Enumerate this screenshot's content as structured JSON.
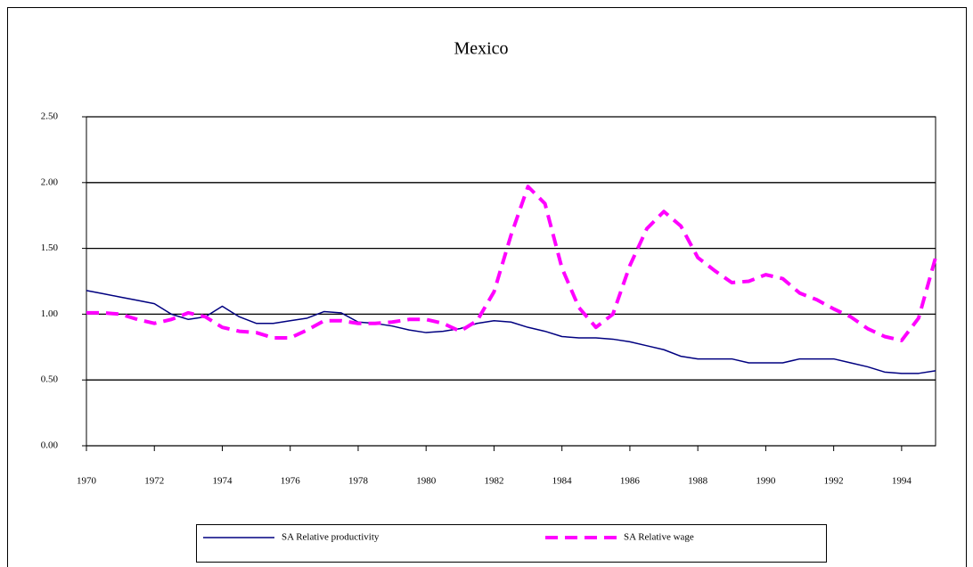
{
  "chart_data": {
    "type": "line",
    "title": "Mexico",
    "x": [
      1970,
      1970.5,
      1971,
      1971.5,
      1972,
      1972.5,
      1973,
      1973.5,
      1974,
      1974.5,
      1975,
      1975.5,
      1976,
      1976.5,
      1977,
      1977.5,
      1978,
      1978.5,
      1979,
      1979.5,
      1980,
      1980.5,
      1981,
      1981.5,
      1982,
      1982.5,
      1983,
      1983.5,
      1984,
      1984.5,
      1985,
      1985.5,
      1986,
      1986.5,
      1987,
      1987.5,
      1988,
      1988.5,
      1989,
      1989.5,
      1990,
      1990.5,
      1991,
      1991.5,
      1992,
      1992.5,
      1993,
      1993.5,
      1994,
      1994.5,
      1995
    ],
    "series": [
      {
        "name": "SA Relative productivity",
        "color": "#000080",
        "dashed": false,
        "values": [
          1.18,
          1.155,
          1.13,
          1.105,
          1.08,
          1.0,
          0.96,
          0.98,
          1.06,
          0.98,
          0.93,
          0.93,
          0.95,
          0.97,
          1.02,
          1.01,
          0.94,
          0.93,
          0.91,
          0.88,
          0.86,
          0.87,
          0.89,
          0.93,
          0.95,
          0.94,
          0.9,
          0.87,
          0.83,
          0.82,
          0.82,
          0.81,
          0.79,
          0.76,
          0.73,
          0.68,
          0.66,
          0.66,
          0.66,
          0.63,
          0.63,
          0.63,
          0.66,
          0.66,
          0.66,
          0.63,
          0.6,
          0.56,
          0.55,
          0.55,
          0.57
        ]
      },
      {
        "name": "SA Relative wage",
        "color": "#ff00ff",
        "dashed": true,
        "values": [
          1.01,
          1.01,
          1.0,
          0.96,
          0.93,
          0.96,
          1.01,
          0.98,
          0.9,
          0.87,
          0.86,
          0.82,
          0.82,
          0.88,
          0.95,
          0.95,
          0.93,
          0.93,
          0.94,
          0.96,
          0.96,
          0.93,
          0.87,
          0.95,
          1.17,
          1.6,
          1.97,
          1.84,
          1.35,
          1.05,
          0.9,
          1.0,
          1.37,
          1.65,
          1.78,
          1.67,
          1.43,
          1.33,
          1.24,
          1.25,
          1.3,
          1.27,
          1.16,
          1.11,
          1.04,
          0.98,
          0.89,
          0.83,
          0.8,
          0.97,
          1.43
        ]
      }
    ],
    "xlim": [
      1970,
      1995
    ],
    "xticks": [
      1970,
      1972,
      1974,
      1976,
      1978,
      1980,
      1982,
      1984,
      1986,
      1988,
      1990,
      1992,
      1994
    ],
    "ylim": [
      0,
      2.5
    ],
    "yticks": [
      {
        "value": 0,
        "label": "0.00"
      },
      {
        "value": 0.5,
        "label": "0.50"
      },
      {
        "value": 1,
        "label": "1.00"
      },
      {
        "value": 1.5,
        "label": "1.50"
      },
      {
        "value": 2,
        "label": "2.00"
      },
      {
        "value": 2.5,
        "label": "2.50"
      }
    ],
    "grid": true,
    "legend": "bottom"
  }
}
